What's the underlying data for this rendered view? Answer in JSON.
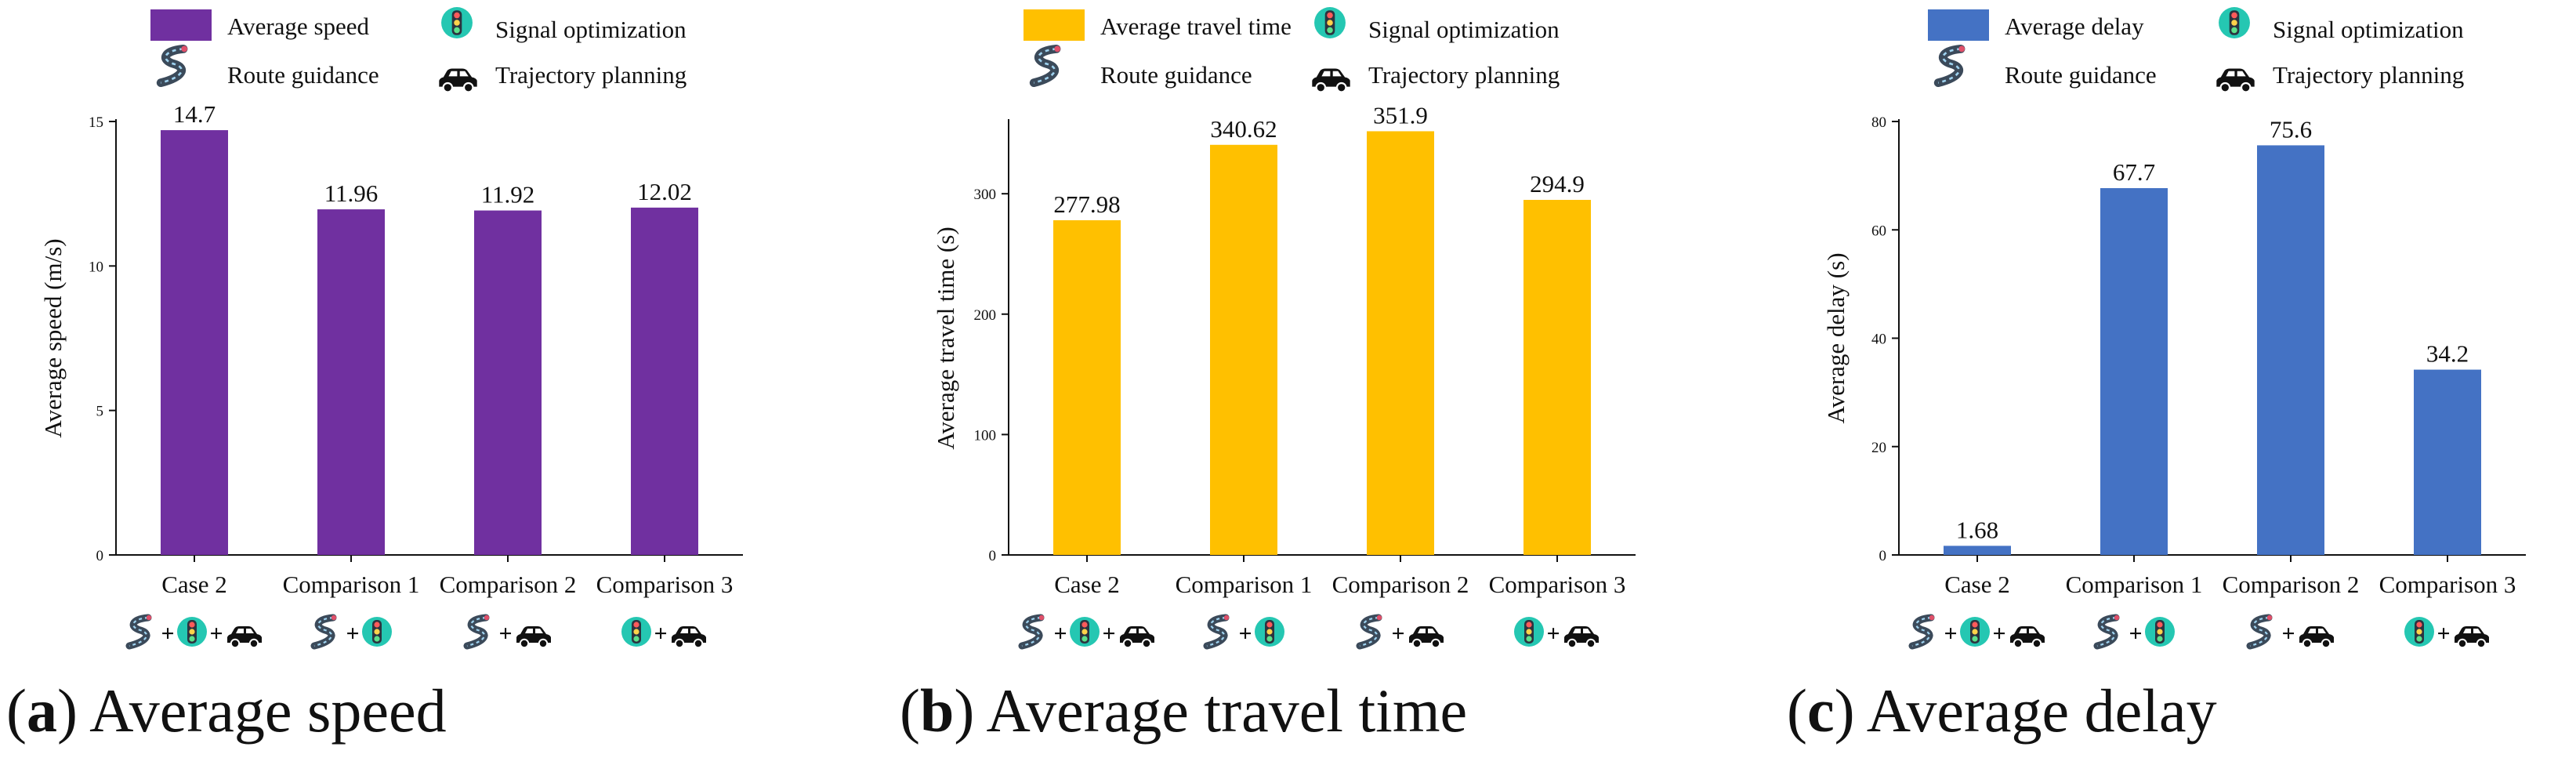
{
  "legend": {
    "signal_label": "Signal optimization",
    "route_label": "Route guidance",
    "trajectory_label": "Trajectory planning"
  },
  "icon_names": {
    "route": "route-guidance-icon",
    "signal": "traffic-signal-icon",
    "car": "car-icon"
  },
  "colors": {
    "speed": "#7030A0",
    "travel_time": "#FFC000",
    "delay": "#4472C4",
    "signal_disc": "#25C7B2",
    "road": "#3b4a5a"
  },
  "chart_data": [
    {
      "type": "bar",
      "panel_letter": "a",
      "caption": "Average speed",
      "series_name": "Average speed",
      "ylabel": "Average speed (m/s)",
      "ylim": [
        0,
        15
      ],
      "yticks": [
        0,
        5,
        10,
        15
      ],
      "categories": [
        "Case 2",
        "Comparison 1",
        "Comparison 2",
        "Comparison 3"
      ],
      "values": [
        14.7,
        11.96,
        11.92,
        12.02
      ],
      "value_labels": [
        "14.7",
        "11.96",
        "11.92",
        "12.02"
      ],
      "methods": [
        [
          "route",
          "signal",
          "car"
        ],
        [
          "route",
          "signal"
        ],
        [
          "route",
          "car"
        ],
        [
          "signal",
          "car"
        ]
      ]
    },
    {
      "type": "bar",
      "panel_letter": "b",
      "caption": "Average travel time",
      "series_name": "Average travel time",
      "ylabel": "Average travel time (s)",
      "ylim": [
        0,
        360
      ],
      "yticks": [
        0,
        100,
        200,
        300
      ],
      "categories": [
        "Case 2",
        "Comparison 1",
        "Comparison 2",
        "Comparison 3"
      ],
      "values": [
        277.98,
        340.62,
        351.9,
        294.9
      ],
      "value_labels": [
        "277.98",
        "340.62",
        "351.9",
        "294.9"
      ],
      "methods": [
        [
          "route",
          "signal",
          "car"
        ],
        [
          "route",
          "signal"
        ],
        [
          "route",
          "car"
        ],
        [
          "signal",
          "car"
        ]
      ]
    },
    {
      "type": "bar",
      "panel_letter": "c",
      "caption": "Average delay",
      "series_name": "Average delay",
      "ylabel": "Average delay (s)",
      "ylim": [
        0,
        80
      ],
      "yticks": [
        0,
        20,
        40,
        60,
        80
      ],
      "categories": [
        "Case 2",
        "Comparison 1",
        "Comparison 2",
        "Comparison 3"
      ],
      "values": [
        1.68,
        67.7,
        75.6,
        34.2
      ],
      "value_labels": [
        "1.68",
        "67.7",
        "75.6",
        "34.2"
      ],
      "methods": [
        [
          "route",
          "signal",
          "car"
        ],
        [
          "route",
          "signal"
        ],
        [
          "route",
          "car"
        ],
        [
          "signal",
          "car"
        ]
      ]
    }
  ]
}
